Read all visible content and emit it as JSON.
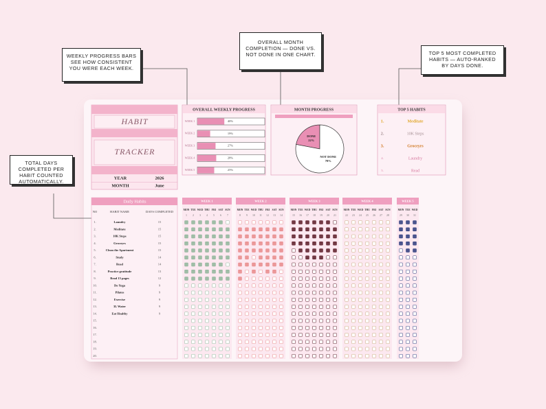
{
  "callouts": [
    "Weekly progress bars see how consistent you were each week.",
    "Overall month completion — done vs. not done in one chart.",
    "Top 5 most completed habits — auto-ranked by days done.",
    "Total days completed per habit counted automatically."
  ],
  "header": {
    "title_1": "HABIT",
    "title_2": "TRACKER",
    "year_label": "YEAR",
    "year": 2026,
    "month_label": "MONTH",
    "month": "June"
  },
  "weekly_progress": {
    "type": "bar",
    "title": "OVERALL WEEKLY PROGRESS",
    "categories": [
      "WEEK 1",
      "WEEK 2",
      "WEEK 3",
      "WEEK 4",
      "WEEK 5"
    ],
    "values": [
      40,
      19,
      27,
      28,
      25
    ],
    "value_labels": [
      "40%",
      "19%",
      "27%",
      "28%",
      "25%"
    ],
    "xlim": [
      0,
      100
    ],
    "color": "#e98fb4"
  },
  "month_progress": {
    "type": "pie",
    "title": "MONTH PROGRESS",
    "categories": [
      "DONE",
      "NOT DONE"
    ],
    "values": [
      22,
      78
    ],
    "value_labels": [
      "22%",
      "78%"
    ],
    "colors": [
      "#e98fb4",
      "#ffffff"
    ]
  },
  "top_habits": {
    "title": "TOP 5 HABITS",
    "ranks": [
      "1.",
      "2.",
      "3.",
      "4.",
      "5."
    ],
    "names": [
      "Meditate",
      "10K Steps",
      "Groceyrs",
      "Laundry",
      "Read"
    ],
    "colors": [
      "#e0a72a",
      "#a58f93",
      "#d0771f",
      "#d77aa0",
      "#d77aa0"
    ]
  },
  "daily_habits": {
    "title": "Daily Habits",
    "columns": [
      "NO",
      "HABIT NAME",
      "DAYS COMPLETED"
    ],
    "rows": [
      {
        "no": "1.",
        "name": "Laundry",
        "days": 15
      },
      {
        "no": "2.",
        "name": "Meditate",
        "days": 15
      },
      {
        "no": "3.",
        "name": "10K Steps",
        "days": 15
      },
      {
        "no": "4.",
        "name": "Groceyrs",
        "days": 15
      },
      {
        "no": "5.",
        "name": "Clean the Apartment",
        "days": 15
      },
      {
        "no": "6.",
        "name": "Study",
        "days": 14
      },
      {
        "no": "7.",
        "name": "Read",
        "days": 14
      },
      {
        "no": "8.",
        "name": "Practice gratitude",
        "days": 13
      },
      {
        "no": "9.",
        "name": "Read 15 pages",
        "days": 12
      },
      {
        "no": "10.",
        "name": "Do Yoga",
        "days": 9
      },
      {
        "no": "11.",
        "name": "Pilates",
        "days": 9
      },
      {
        "no": "12.",
        "name": "Exercise",
        "days": 9
      },
      {
        "no": "13.",
        "name": "3L Water",
        "days": 9
      },
      {
        "no": "14.",
        "name": "Eat Healthy",
        "days": 9
      },
      {
        "no": "15.",
        "name": null,
        "days": null
      },
      {
        "no": "16.",
        "name": null,
        "days": null
      },
      {
        "no": "17.",
        "name": null,
        "days": null
      },
      {
        "no": "18.",
        "name": null,
        "days": null
      },
      {
        "no": "19.",
        "name": null,
        "days": null
      },
      {
        "no": "20.",
        "name": null,
        "days": null
      }
    ]
  },
  "weeks": [
    {
      "title": "WEEK 1",
      "color": "#8fb59a",
      "days": [
        "MON",
        "TUE",
        "WED",
        "THU",
        "FRI",
        "SAT",
        "SUN"
      ],
      "dates": [
        1,
        2,
        3,
        4,
        5,
        6,
        7
      ],
      "checks": [
        [
          1,
          1,
          1,
          1,
          1,
          1,
          0
        ],
        [
          1,
          1,
          1,
          1,
          1,
          1,
          1
        ],
        [
          1,
          1,
          1,
          1,
          1,
          1,
          1
        ],
        [
          1,
          1,
          1,
          1,
          1,
          1,
          1
        ],
        [
          1,
          1,
          1,
          1,
          1,
          1,
          1
        ],
        [
          1,
          1,
          1,
          1,
          1,
          1,
          1
        ],
        [
          1,
          1,
          1,
          1,
          1,
          1,
          0
        ],
        [
          1,
          1,
          1,
          1,
          1,
          1,
          1
        ],
        [
          1,
          1,
          1,
          1,
          1,
          1,
          1
        ],
        [
          0,
          0,
          0,
          0,
          0,
          0,
          0
        ],
        [
          0,
          0,
          0,
          0,
          0,
          0,
          0
        ],
        [
          0,
          0,
          0,
          0,
          0,
          0,
          0
        ],
        [
          0,
          0,
          0,
          0,
          0,
          0,
          0
        ],
        [
          0,
          0,
          0,
          0,
          0,
          0,
          0
        ],
        [
          0,
          0,
          0,
          0,
          0,
          0,
          0
        ],
        [
          0,
          0,
          0,
          0,
          0,
          0,
          0
        ],
        [
          0,
          0,
          0,
          0,
          0,
          0,
          0
        ],
        [
          0,
          0,
          0,
          0,
          0,
          0,
          0
        ],
        [
          0,
          0,
          0,
          0,
          0,
          0,
          0
        ],
        [
          0,
          0,
          0,
          0,
          0,
          0,
          0
        ]
      ]
    },
    {
      "title": "WEEK 2",
      "color": "#e88a8a",
      "days": [
        "MON",
        "TUE",
        "WED",
        "THU",
        "FRI",
        "SAT",
        "SUN"
      ],
      "dates": [
        8,
        9,
        10,
        11,
        12,
        13,
        14
      ],
      "checks": [
        [
          0,
          0,
          0,
          0,
          0,
          0,
          0
        ],
        [
          1,
          1,
          1,
          1,
          1,
          1,
          1
        ],
        [
          1,
          1,
          1,
          1,
          1,
          1,
          1
        ],
        [
          1,
          1,
          1,
          1,
          1,
          1,
          1
        ],
        [
          1,
          1,
          1,
          1,
          1,
          1,
          1
        ],
        [
          1,
          1,
          0,
          1,
          1,
          1,
          1
        ],
        [
          1,
          1,
          1,
          1,
          1,
          1,
          1
        ],
        [
          1,
          0,
          1,
          0,
          1,
          1,
          0
        ],
        [
          1,
          0,
          0,
          0,
          0,
          0,
          0
        ],
        [
          0,
          0,
          0,
          0,
          0,
          0,
          0
        ],
        [
          0,
          0,
          0,
          0,
          0,
          0,
          0
        ],
        [
          0,
          0,
          0,
          0,
          0,
          0,
          0
        ],
        [
          0,
          0,
          0,
          0,
          0,
          0,
          0
        ],
        [
          0,
          0,
          0,
          0,
          0,
          0,
          0
        ],
        [
          0,
          0,
          0,
          0,
          0,
          0,
          0
        ],
        [
          0,
          0,
          0,
          0,
          0,
          0,
          0
        ],
        [
          0,
          0,
          0,
          0,
          0,
          0,
          0
        ],
        [
          0,
          0,
          0,
          0,
          0,
          0,
          0
        ],
        [
          0,
          0,
          0,
          0,
          0,
          0,
          0
        ],
        [
          0,
          0,
          0,
          0,
          0,
          0,
          0
        ]
      ]
    },
    {
      "title": "WEEK 3",
      "color": "#5a1a26",
      "days": [
        "MON",
        "TUE",
        "WED",
        "THU",
        "FRI",
        "SAT",
        "SUN"
      ],
      "dates": [
        15,
        16,
        17,
        18,
        19,
        20,
        21
      ],
      "checks": [
        [
          1,
          1,
          1,
          1,
          1,
          1,
          0
        ],
        [
          1,
          1,
          1,
          1,
          1,
          1,
          1
        ],
        [
          1,
          1,
          1,
          1,
          1,
          1,
          1
        ],
        [
          1,
          1,
          1,
          1,
          1,
          1,
          1
        ],
        [
          0,
          1,
          1,
          1,
          1,
          1,
          1
        ],
        [
          0,
          0,
          1,
          1,
          1,
          0,
          0
        ],
        [
          0,
          0,
          0,
          0,
          0,
          0,
          0
        ],
        [
          0,
          0,
          0,
          0,
          0,
          0,
          0
        ],
        [
          0,
          0,
          0,
          0,
          0,
          0,
          0
        ],
        [
          0,
          0,
          0,
          0,
          0,
          0,
          0
        ],
        [
          0,
          0,
          0,
          0,
          0,
          0,
          0
        ],
        [
          0,
          0,
          0,
          0,
          0,
          0,
          0
        ],
        [
          0,
          0,
          0,
          0,
          0,
          0,
          0
        ],
        [
          0,
          0,
          0,
          0,
          0,
          0,
          0
        ],
        [
          0,
          0,
          0,
          0,
          0,
          0,
          0
        ],
        [
          0,
          0,
          0,
          0,
          0,
          0,
          0
        ],
        [
          0,
          0,
          0,
          0,
          0,
          0,
          0
        ],
        [
          0,
          0,
          0,
          0,
          0,
          0,
          0
        ],
        [
          0,
          0,
          0,
          0,
          0,
          0,
          0
        ],
        [
          0,
          0,
          0,
          0,
          0,
          0,
          0
        ]
      ]
    },
    {
      "title": "WEEK 4",
      "color": "#c9a77c",
      "days": [
        "MON",
        "TUE",
        "WED",
        "THU",
        "FRI",
        "SAT",
        "SUN"
      ],
      "dates": [
        22,
        23,
        24,
        25,
        26,
        27,
        28
      ],
      "checks": [
        [
          0,
          0,
          0,
          0,
          0,
          0,
          0
        ],
        [
          0,
          0,
          0,
          0,
          0,
          0,
          0
        ],
        [
          0,
          0,
          0,
          0,
          0,
          0,
          0
        ],
        [
          0,
          0,
          0,
          0,
          0,
          0,
          0
        ],
        [
          0,
          0,
          0,
          0,
          0,
          0,
          0
        ],
        [
          0,
          0,
          0,
          0,
          0,
          0,
          0
        ],
        [
          0,
          0,
          0,
          0,
          0,
          0,
          0
        ],
        [
          0,
          0,
          0,
          0,
          0,
          0,
          0
        ],
        [
          0,
          0,
          0,
          0,
          0,
          0,
          0
        ],
        [
          0,
          0,
          0,
          0,
          0,
          0,
          0
        ],
        [
          0,
          0,
          0,
          0,
          0,
          0,
          0
        ],
        [
          0,
          0,
          0,
          0,
          0,
          0,
          0
        ],
        [
          0,
          0,
          0,
          0,
          0,
          0,
          0
        ],
        [
          0,
          0,
          0,
          0,
          0,
          0,
          0
        ],
        [
          0,
          0,
          0,
          0,
          0,
          0,
          0
        ],
        [
          0,
          0,
          0,
          0,
          0,
          0,
          0
        ],
        [
          0,
          0,
          0,
          0,
          0,
          0,
          0
        ],
        [
          0,
          0,
          0,
          0,
          0,
          0,
          0
        ],
        [
          0,
          0,
          0,
          0,
          0,
          0,
          0
        ],
        [
          0,
          0,
          0,
          0,
          0,
          0,
          0
        ]
      ]
    },
    {
      "title": "WEEK 5",
      "color": "#2b3a7c",
      "days": [
        "MON",
        "TUE",
        "WED"
      ],
      "dates": [
        29,
        30,
        31
      ],
      "checks": [
        [
          1,
          1,
          1
        ],
        [
          1,
          1,
          1
        ],
        [
          1,
          1,
          1
        ],
        [
          1,
          1,
          1
        ],
        [
          0,
          1,
          1
        ],
        [
          0,
          0,
          0
        ],
        [
          0,
          0,
          0
        ],
        [
          0,
          0,
          0
        ],
        [
          0,
          0,
          0
        ],
        [
          0,
          0,
          0
        ],
        [
          0,
          0,
          0
        ],
        [
          0,
          0,
          0
        ],
        [
          0,
          0,
          0
        ],
        [
          0,
          0,
          0
        ],
        [
          0,
          0,
          0
        ],
        [
          0,
          0,
          0
        ],
        [
          0,
          0,
          0
        ],
        [
          0,
          0,
          0
        ],
        [
          0,
          0,
          0
        ],
        [
          0,
          0,
          0
        ]
      ]
    }
  ]
}
